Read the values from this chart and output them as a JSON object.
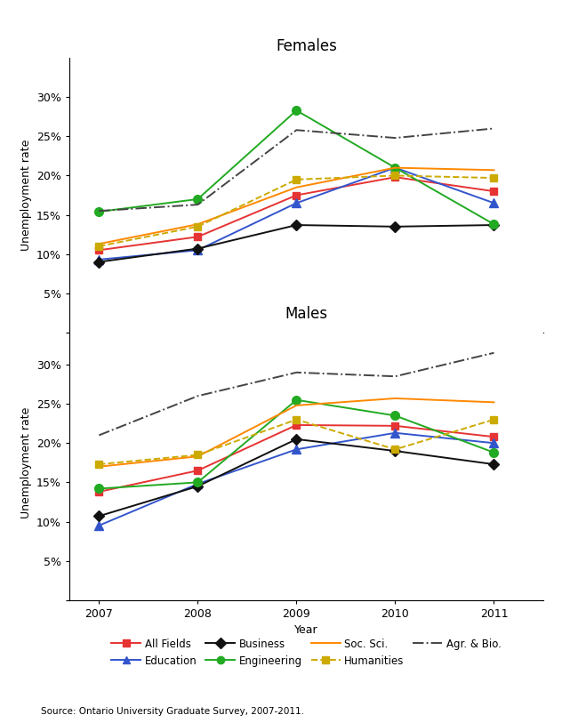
{
  "years": [
    2007,
    2008,
    2009,
    2010,
    2011
  ],
  "females": {
    "All Fields": [
      10.5,
      12.2,
      17.5,
      19.8,
      18.0
    ],
    "Education": [
      9.3,
      10.5,
      16.5,
      21.0,
      16.5
    ],
    "Business": [
      9.0,
      10.7,
      13.7,
      13.5,
      13.7
    ],
    "Engineering": [
      15.4,
      17.0,
      28.3,
      21.0,
      13.8
    ],
    "Soc. Sci.": [
      11.3,
      13.8,
      18.5,
      21.0,
      20.7
    ],
    "Humanities": [
      11.0,
      13.5,
      19.5,
      20.0,
      19.7
    ],
    "Agr. & Bio.": [
      15.5,
      16.3,
      25.8,
      24.8,
      26.0
    ]
  },
  "males": {
    "All Fields": [
      13.8,
      16.5,
      22.3,
      22.2,
      20.8
    ],
    "Education": [
      9.5,
      14.8,
      19.2,
      21.3,
      20.0
    ],
    "Business": [
      10.7,
      14.5,
      20.5,
      19.0,
      17.3
    ],
    "Engineering": [
      14.2,
      15.0,
      25.5,
      23.5,
      18.8
    ],
    "Soc. Sci.": [
      17.0,
      18.3,
      24.8,
      25.7,
      25.2
    ],
    "Humanities": [
      17.3,
      18.5,
      23.0,
      19.2,
      23.0
    ],
    "Agr. & Bio.": [
      21.0,
      26.0,
      29.0,
      28.5,
      31.5
    ]
  },
  "series_styles": {
    "All Fields": {
      "color": "#e63333",
      "linestyle": "-",
      "marker": "s",
      "markersize": 6
    },
    "Education": {
      "color": "#3355cc",
      "linestyle": "-",
      "marker": "^",
      "markersize": 7
    },
    "Business": {
      "color": "#111111",
      "linestyle": "-",
      "marker": "D",
      "markersize": 6
    },
    "Engineering": {
      "color": "#22aa22",
      "linestyle": "-",
      "marker": "o",
      "markersize": 7
    },
    "Soc. Sci.": {
      "color": "#ff8800",
      "linestyle": "-",
      "marker": "None",
      "markersize": 0
    },
    "Humanities": {
      "color": "#ccaa00",
      "linestyle": "--",
      "marker": "s",
      "markersize": 6
    },
    "Agr. & Bio.": {
      "color": "#444444",
      "linestyle": "-.",
      "marker": "None",
      "markersize": 0
    }
  },
  "legend_order": [
    "All Fields",
    "Education",
    "Business",
    "Engineering",
    "Soc. Sci.",
    "Humanities",
    "Agr. & Bio."
  ],
  "ylim": [
    0,
    35
  ],
  "yticks": [
    0,
    5,
    10,
    15,
    20,
    25,
    30
  ],
  "ytick_labels": [
    "",
    "5%",
    "10%",
    "15%",
    "20%",
    "25%",
    "30%"
  ],
  "xlabel": "Year",
  "ylabel": "Unemployment rate",
  "title_females": "Females",
  "title_males": "Males",
  "source_text": "Source: Ontario University Graduate Survey, 2007-2011.",
  "figsize": [
    6.5,
    8.13
  ],
  "dpi": 100
}
